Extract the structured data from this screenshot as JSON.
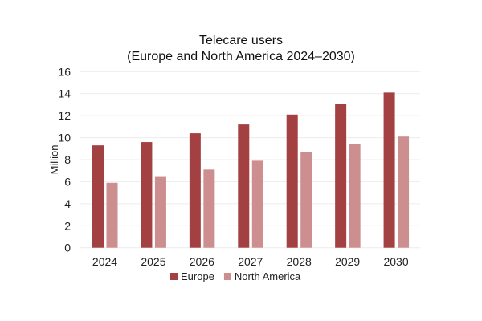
{
  "chart_data": {
    "type": "bar",
    "title": "Telecare users",
    "subtitle": "(Europe and North America 2024–2030)",
    "xlabel": "",
    "ylabel": "Million",
    "ylim": [
      0,
      16
    ],
    "yticks": [
      0,
      2,
      4,
      6,
      8,
      10,
      12,
      14,
      16
    ],
    "grid": true,
    "legend": "bottom",
    "categories": [
      "2024",
      "2025",
      "2026",
      "2027",
      "2028",
      "2029",
      "2030"
    ],
    "series": [
      {
        "name": "Europe",
        "color": "#a34142",
        "values": [
          9.3,
          9.6,
          10.4,
          11.2,
          12.1,
          13.1,
          14.1
        ]
      },
      {
        "name": "North America",
        "color": "#cc8e8e",
        "values": [
          5.9,
          6.5,
          7.1,
          7.9,
          8.7,
          9.4,
          10.1
        ]
      }
    ]
  }
}
